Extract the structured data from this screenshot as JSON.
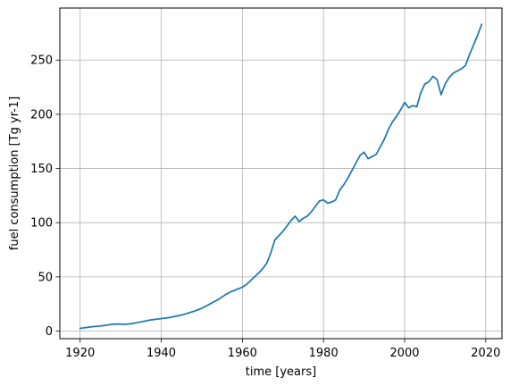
{
  "chart_data": {
    "type": "line",
    "title": "",
    "xlabel": "time [years]",
    "ylabel": "fuel consumption [Tg yr-1]",
    "xlim": [
      1915,
      2024
    ],
    "ylim": [
      -7,
      298
    ],
    "xticks": [
      1920,
      1940,
      1960,
      1980,
      2000,
      2020
    ],
    "xtick_labels": [
      "1920",
      "1940",
      "1960",
      "1980",
      "2000",
      "2020"
    ],
    "yticks": [
      0,
      50,
      100,
      150,
      200,
      250
    ],
    "ytick_labels": [
      "0",
      "50",
      "100",
      "150",
      "200",
      "250"
    ],
    "grid": true,
    "line_color": "#1f77b4",
    "series": [
      {
        "x": [
          1920,
          1921,
          1922,
          1923,
          1924,
          1925,
          1926,
          1927,
          1928,
          1929,
          1930,
          1931,
          1932,
          1933,
          1934,
          1935,
          1936,
          1937,
          1938,
          1939,
          1940,
          1941,
          1942,
          1943,
          1944,
          1945,
          1946,
          1947,
          1948,
          1949,
          1950,
          1951,
          1952,
          1953,
          1954,
          1955,
          1956,
          1957,
          1958,
          1959,
          1960,
          1961,
          1962,
          1963,
          1964,
          1965,
          1966,
          1967,
          1968,
          1969,
          1970,
          1971,
          1972,
          1973,
          1974,
          1975,
          1976,
          1977,
          1978,
          1979,
          1980,
          1981,
          1982,
          1983,
          1984,
          1985,
          1986,
          1987,
          1988,
          1989,
          1990,
          1991,
          1992,
          1993,
          1994,
          1995,
          1996,
          1997,
          1998,
          1999,
          2000,
          2001,
          2002,
          2003,
          2004,
          2005,
          2006,
          2007,
          2008,
          2009,
          2010,
          2011,
          2012,
          2013,
          2014,
          2015,
          2016,
          2017,
          2018,
          2019
        ],
        "y": [
          2.5,
          3,
          3.5,
          4,
          4.3,
          4.7,
          5.2,
          5.8,
          6.3,
          6.5,
          6.4,
          6.2,
          6.5,
          7,
          7.8,
          8.5,
          9.2,
          10,
          10.5,
          11,
          11.5,
          12,
          12.5,
          13.2,
          14,
          14.8,
          15.8,
          17,
          18.2,
          19.5,
          21,
          23,
          25,
          27,
          29,
          31.5,
          34,
          36,
          37.5,
          39,
          40.5,
          43,
          46.5,
          50,
          53.5,
          57.5,
          62.5,
          72,
          84,
          88,
          92,
          97,
          102,
          106,
          101,
          104,
          106,
          110,
          115,
          120,
          121,
          118,
          119,
          121,
          130,
          135,
          141,
          148,
          155,
          162,
          165,
          159,
          161,
          163,
          170,
          177,
          186,
          193,
          198,
          204,
          211,
          206,
          208,
          207,
          220,
          228,
          230,
          235,
          232,
          218,
          228,
          234,
          238,
          240,
          242,
          245,
          255,
          264,
          273,
          283
        ]
      }
    ]
  }
}
